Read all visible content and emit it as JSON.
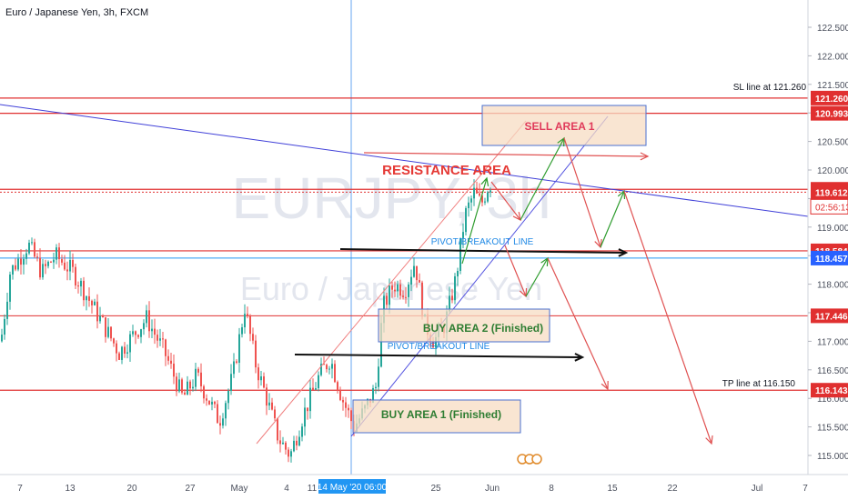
{
  "header": {
    "title": "Euro / Japanese Yen, 3h, FXCM"
  },
  "watermark": {
    "symbol": "EURJPY, 3h",
    "name": "Euro / Japanese Yen"
  },
  "chart_data": {
    "type": "candlestick",
    "y_ticks": [
      "122.500",
      "122.000",
      "121.500",
      "121.000",
      "120.500",
      "120.000",
      "119.500",
      "119.000",
      "118.500",
      "118.000",
      "117.500",
      "117.000",
      "116.500",
      "116.000",
      "115.500",
      "115.000"
    ],
    "x_ticks": [
      "7",
      "13",
      "20",
      "27",
      "May",
      "4",
      "11",
      "18",
      "25",
      "Jun",
      "8",
      "15",
      "22",
      "Jul",
      "7"
    ],
    "crosshair_label": "14 May '20  06:00",
    "countdown": "02:56:13",
    "price_tags": [
      {
        "label": "121.260",
        "value": 121.26,
        "color": "#e03030"
      },
      {
        "label": "120.993",
        "value": 120.993,
        "color": "#e03030"
      },
      {
        "label": "119.662",
        "value": 119.662,
        "color": "#e03030"
      },
      {
        "label": "119.612",
        "value": 119.612,
        "color": "#e03030"
      },
      {
        "label": "118.584",
        "value": 118.584,
        "color": "#e03030"
      },
      {
        "label": "118.457",
        "value": 118.457,
        "color": "#2962ff"
      },
      {
        "label": "117.446",
        "value": 117.446,
        "color": "#e03030"
      },
      {
        "label": "116.143",
        "value": 116.143,
        "color": "#e03030"
      }
    ],
    "line_labels": {
      "sl": "SL line at 121.260",
      "tp": "TP line at 116.150"
    },
    "zones": {
      "sell_area": "SELL AREA 1",
      "resistance": "RESISTANCE AREA",
      "pivot_upper": "PIVOT/BREAKOUT LINE",
      "pivot_lower": "PIVOT/BREAKOUT LINE",
      "buy_area_2": "BUY AREA 2 (Finished)",
      "buy_area_1": "BUY AREA 1 (Finished)"
    },
    "colors": {
      "up": "#26a69a",
      "down": "#ef5350",
      "resistance": "#e03030",
      "trend": "#3f3fd8",
      "sell_text": "#e03a5a",
      "buy_text": "#2e7d32"
    }
  }
}
